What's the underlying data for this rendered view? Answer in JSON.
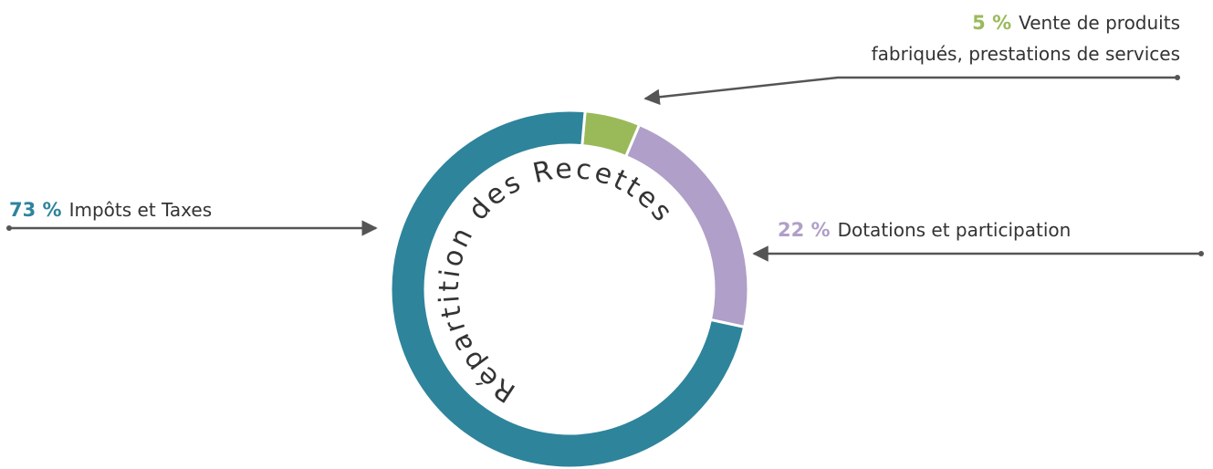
{
  "chart_data": {
    "type": "donut",
    "title": "Répartition des Recettes",
    "categories": [
      "Vente de produits\nfabriqués, prestations de services",
      "Dotations et participation",
      "Impôts et Taxes"
    ],
    "values": [
      5,
      22,
      73
    ],
    "value_labels": [
      "5 %",
      "22 %",
      "73 %"
    ],
    "colors": [
      "#9aba5a",
      "#b09fc8",
      "#2e849b"
    ]
  }
}
